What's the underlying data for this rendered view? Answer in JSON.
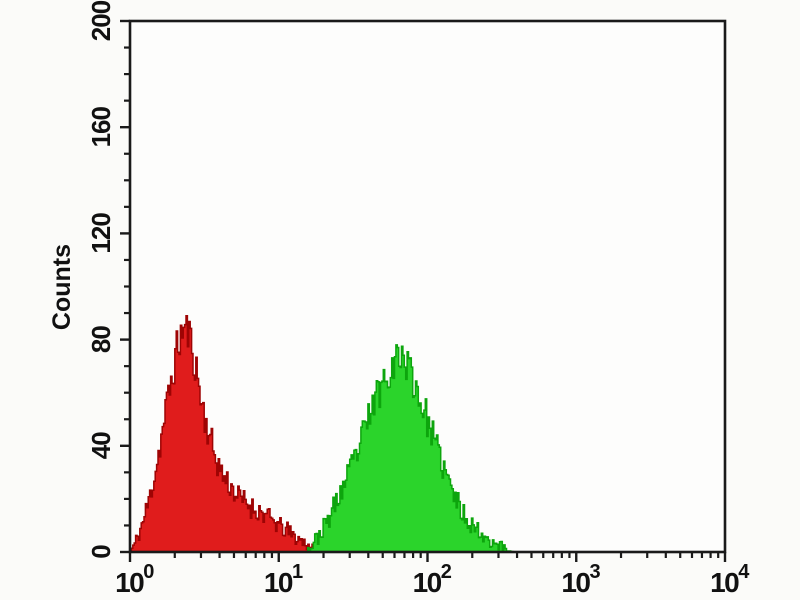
{
  "chart_data": {
    "type": "area",
    "subtype": "flow-cytometry-histogram-overlay",
    "title": "",
    "x_axis": {
      "scale": "log",
      "min": 1,
      "max": 10000,
      "tick_base": "10",
      "tick_exponents": [
        0,
        1,
        2,
        3,
        4
      ],
      "minor_tick_multipliers": [
        2,
        3,
        4,
        5,
        6,
        7,
        8,
        9
      ]
    },
    "y_axis": {
      "label": "Counts",
      "min": 0,
      "max": 200,
      "major_ticks": [
        0,
        40,
        80,
        120,
        160,
        200
      ],
      "tick_labels": [
        "0",
        "40",
        "80",
        "120",
        "160",
        "200"
      ],
      "minor_tick_interval": 10
    },
    "grid": false,
    "legend": "none",
    "frame_color": "#1a1a1a",
    "plot_background": "#fdfdfc",
    "series": [
      {
        "name": "red-peak",
        "fill_color": "#e01c1c",
        "stroke_color": "#9e0404",
        "peak_x": 2.4,
        "peak_counts": 85,
        "max_spike_counts": 89,
        "noise_seed": 11,
        "envelope": [
          [
            1.0,
            0
          ],
          [
            1.08,
            3
          ],
          [
            1.15,
            7
          ],
          [
            1.25,
            13
          ],
          [
            1.35,
            20
          ],
          [
            1.5,
            32
          ],
          [
            1.65,
            45
          ],
          [
            1.8,
            58
          ],
          [
            1.95,
            68
          ],
          [
            2.1,
            78
          ],
          [
            2.25,
            83
          ],
          [
            2.4,
            85
          ],
          [
            2.55,
            80
          ],
          [
            2.7,
            73
          ],
          [
            2.85,
            66
          ],
          [
            3.0,
            58
          ],
          [
            3.2,
            50
          ],
          [
            3.5,
            42
          ],
          [
            3.8,
            35
          ],
          [
            4.2,
            29
          ],
          [
            4.6,
            26
          ],
          [
            5.0,
            23
          ],
          [
            5.5,
            20
          ],
          [
            6.0,
            19
          ],
          [
            6.5,
            17
          ],
          [
            7.0,
            16
          ],
          [
            7.7,
            15
          ],
          [
            8.5,
            13
          ],
          [
            9.5,
            11
          ],
          [
            10.5,
            9
          ],
          [
            11.5,
            8
          ],
          [
            12.5,
            6
          ],
          [
            13.5,
            5
          ],
          [
            14.5,
            4
          ],
          [
            15.5,
            3
          ],
          [
            16.5,
            2
          ],
          [
            17.5,
            1
          ],
          [
            18.5,
            0
          ]
        ]
      },
      {
        "name": "green-peak",
        "fill_color": "#2bd42b",
        "stroke_color": "#0da50d",
        "peak_x": 65,
        "peak_counts": 75,
        "max_spike_counts": 78,
        "noise_seed": 23,
        "envelope": [
          [
            15,
            0
          ],
          [
            16.5,
            2
          ],
          [
            18,
            5
          ],
          [
            20,
            9
          ],
          [
            22,
            13
          ],
          [
            24,
            18
          ],
          [
            27,
            24
          ],
          [
            30,
            30
          ],
          [
            33,
            36
          ],
          [
            37,
            44
          ],
          [
            41,
            52
          ],
          [
            45,
            58
          ],
          [
            50,
            64
          ],
          [
            55,
            69
          ],
          [
            60,
            72
          ],
          [
            65,
            75
          ],
          [
            70,
            73
          ],
          [
            76,
            69
          ],
          [
            83,
            63
          ],
          [
            90,
            57
          ],
          [
            98,
            51
          ],
          [
            107,
            45
          ],
          [
            117,
            38
          ],
          [
            128,
            32
          ],
          [
            140,
            26
          ],
          [
            155,
            20
          ],
          [
            172,
            15
          ],
          [
            195,
            11
          ],
          [
            220,
            8
          ],
          [
            255,
            5
          ],
          [
            295,
            3
          ],
          [
            340,
            1
          ],
          [
            380,
            0
          ]
        ]
      }
    ]
  }
}
